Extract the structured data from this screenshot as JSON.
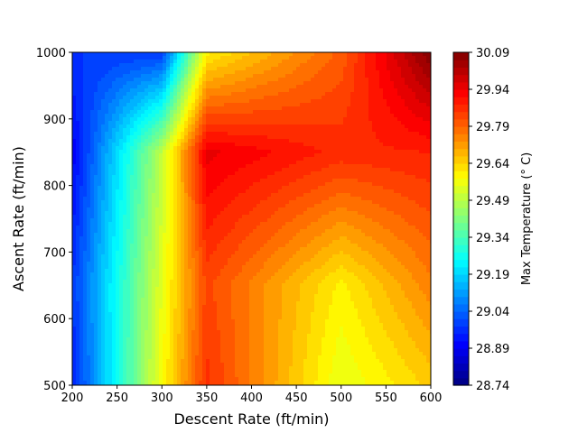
{
  "chart_data": {
    "type": "heatmap",
    "title": "",
    "xlabel": "Descent Rate (ft/min)",
    "ylabel": "Ascent Rate (ft/min)",
    "xlim": [
      200,
      600
    ],
    "ylim": [
      500,
      1000
    ],
    "xticks": [
      "200",
      "250",
      "300",
      "350",
      "400",
      "450",
      "500",
      "550",
      "600"
    ],
    "yticks": [
      "500",
      "600",
      "700",
      "800",
      "900",
      "1000"
    ],
    "colormap": "jet",
    "grid": false,
    "x": [
      200,
      300,
      350,
      500,
      600
    ],
    "y": [
      500,
      650,
      850,
      1000
    ],
    "z": [
      [
        28.95,
        29.58,
        29.86,
        29.55,
        29.65
      ],
      [
        28.98,
        29.55,
        29.83,
        29.6,
        29.75
      ],
      [
        28.9,
        29.5,
        29.95,
        29.87,
        29.88
      ],
      [
        28.98,
        28.98,
        29.6,
        29.8,
        30.09
      ]
    ],
    "colorbar": {
      "label": "Max Temperature (° C)",
      "min": 28.74,
      "max": 30.09,
      "ticks": [
        "28.74",
        "28.89",
        "29.04",
        "29.19",
        "29.34",
        "29.49",
        "29.64",
        "29.79",
        "29.94",
        "30.09"
      ]
    }
  }
}
